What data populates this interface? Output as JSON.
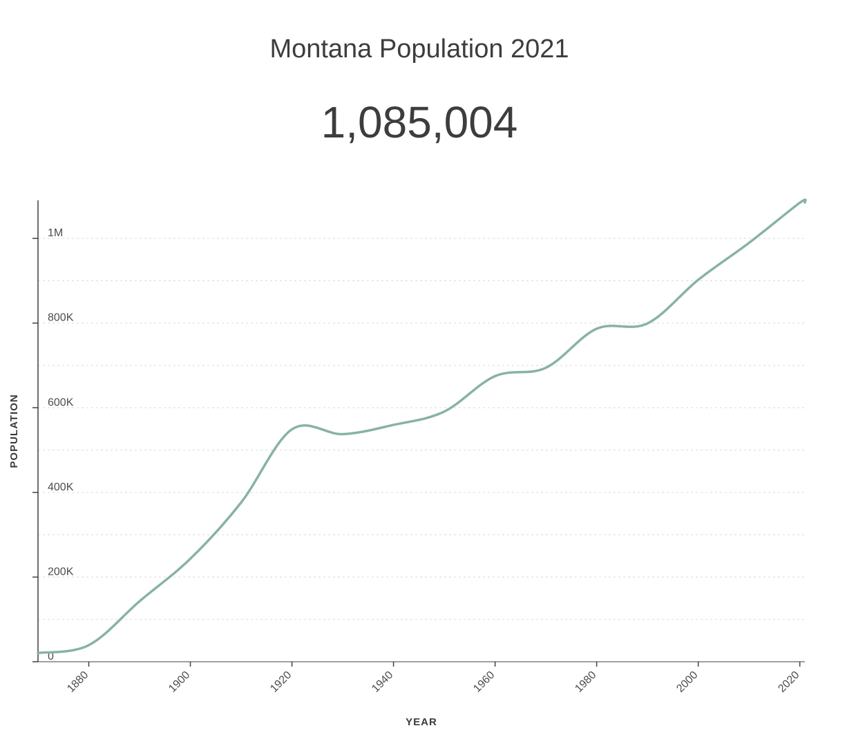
{
  "header": {
    "title": "Montana Population 2021",
    "value": "1,085,004"
  },
  "chart_data": {
    "type": "line",
    "title": "Montana Population 2021",
    "headline_value": "1,085,004",
    "xlabel": "YEAR",
    "ylabel": "POPULATION",
    "x": [
      1870,
      1880,
      1890,
      1900,
      1910,
      1920,
      1930,
      1940,
      1950,
      1960,
      1970,
      1980,
      1990,
      2000,
      2010,
      2020,
      2021
    ],
    "y": [
      20595,
      39159,
      142924,
      243329,
      376053,
      548889,
      537606,
      559456,
      591024,
      674767,
      694409,
      786690,
      799065,
      902195,
      989415,
      1084225,
      1085004
    ],
    "xlim": [
      1870,
      2021
    ],
    "ylim": [
      0,
      1090000
    ],
    "x_ticks": [
      1880,
      1900,
      1920,
      1940,
      1960,
      1980,
      2000,
      2020
    ],
    "y_ticks": [
      {
        "v": 0,
        "label": "0"
      },
      {
        "v": 200000,
        "label": "200K"
      },
      {
        "v": 400000,
        "label": "400K"
      },
      {
        "v": 600000,
        "label": "600K"
      },
      {
        "v": 800000,
        "label": "800K"
      },
      {
        "v": 1000000,
        "label": "1M"
      }
    ],
    "grid_step": 100000,
    "grid_on": true,
    "legend": "none",
    "line_color": "#87b3a2",
    "grid_color": "#d9d9d9",
    "axis_color": "#3f3f3f",
    "tick_text_color": "#4c4c4c"
  }
}
